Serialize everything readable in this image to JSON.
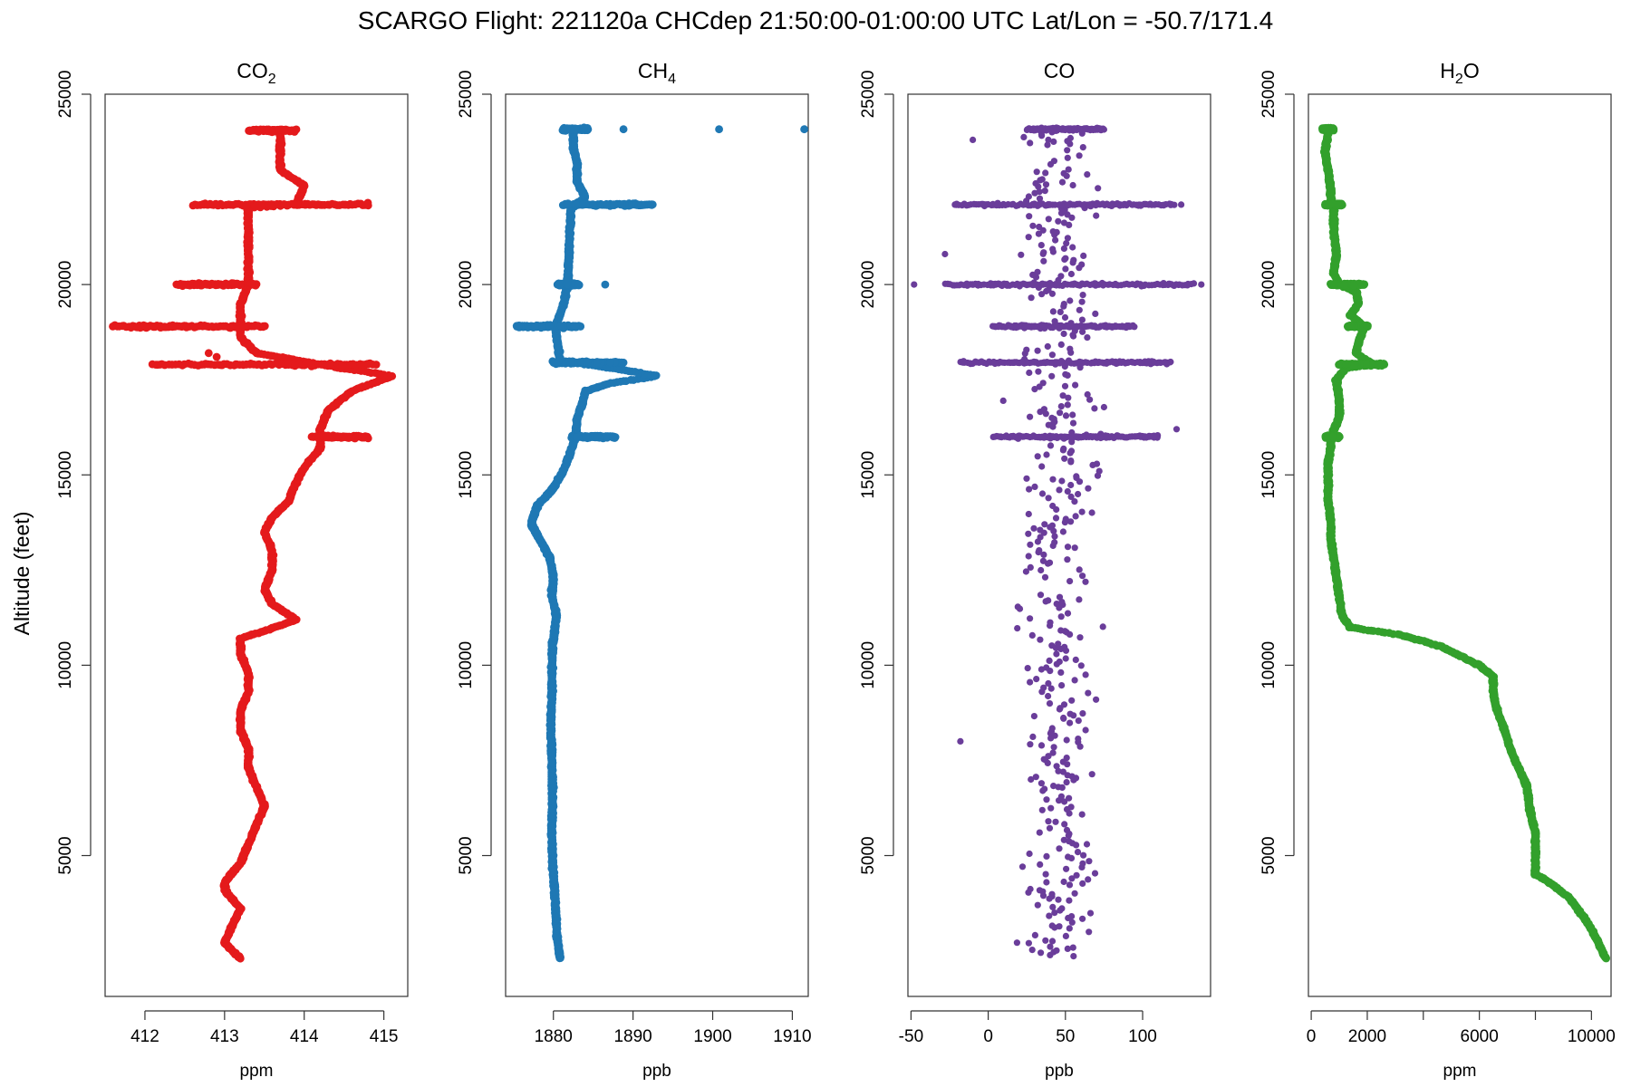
{
  "figure": {
    "title": "SCARGO Flight: 221120a  CHCdep  21:50:00-01:00:00 UTC  Lat/Lon = -50.7/171.4",
    "ylabel": "Altitude (feet)"
  },
  "chart_data": [
    {
      "type": "scatter",
      "title": "CO",
      "title_subscript": "2",
      "xlabel": "ppm",
      "ylabel": "Altitude (feet)",
      "color": "#e41a1c",
      "xlim": [
        411.5,
        415.3
      ],
      "ylim": [
        1300,
        25000
      ],
      "xticks": [
        412,
        413,
        414,
        415
      ],
      "yticks": [
        5000,
        10000,
        15000,
        20000,
        25000
      ],
      "profile": [
        [
          413.2,
          2300
        ],
        [
          413.0,
          2700
        ],
        [
          413.1,
          3200
        ],
        [
          413.2,
          3600
        ],
        [
          413.0,
          4100
        ],
        [
          413.0,
          4300
        ],
        [
          413.2,
          4800
        ],
        [
          413.3,
          5300
        ],
        [
          413.4,
          5800
        ],
        [
          413.5,
          6300
        ],
        [
          413.4,
          6800
        ],
        [
          413.3,
          7300
        ],
        [
          413.3,
          7800
        ],
        [
          413.2,
          8300
        ],
        [
          413.2,
          8800
        ],
        [
          413.3,
          9300
        ],
        [
          413.3,
          9800
        ],
        [
          413.2,
          10300
        ],
        [
          413.2,
          10700
        ],
        [
          413.5,
          10900
        ],
        [
          413.9,
          11200
        ],
        [
          413.6,
          11600
        ],
        [
          413.5,
          12000
        ],
        [
          413.6,
          12500
        ],
        [
          413.6,
          13000
        ],
        [
          413.5,
          13500
        ],
        [
          413.6,
          13900
        ],
        [
          413.8,
          14300
        ],
        [
          413.9,
          14800
        ],
        [
          414.0,
          15200
        ],
        [
          414.2,
          15700
        ],
        [
          414.2,
          16200
        ],
        [
          414.3,
          16700
        ],
        [
          414.6,
          17200
        ],
        [
          415.1,
          17600
        ],
        [
          414.2,
          17900
        ],
        [
          413.4,
          18200
        ],
        [
          413.2,
          18600
        ],
        [
          413.2,
          19000
        ],
        [
          413.2,
          19500
        ],
        [
          413.3,
          20000
        ],
        [
          413.3,
          20500
        ],
        [
          413.3,
          21000
        ],
        [
          413.3,
          21500
        ],
        [
          413.3,
          22000
        ],
        [
          413.9,
          22100
        ],
        [
          414.0,
          22600
        ],
        [
          413.7,
          23000
        ],
        [
          413.7,
          23500
        ],
        [
          413.7,
          24000
        ]
      ],
      "bands": [
        [
          24050,
          413.3,
          413.9
        ],
        [
          22100,
          412.6,
          414.8
        ],
        [
          20000,
          412.4,
          413.4
        ],
        [
          18900,
          411.6,
          413.5
        ],
        [
          17900,
          412.1,
          414.9
        ],
        [
          16000,
          414.1,
          414.8
        ]
      ],
      "outliers": [
        [
          413.5,
          17900
        ],
        [
          412.8,
          18200
        ],
        [
          412.9,
          18100
        ]
      ]
    },
    {
      "type": "scatter",
      "title": "CH",
      "title_subscript": "4",
      "xlabel": "ppb",
      "ylabel": "Altitude (feet)",
      "color": "#1f78b4",
      "xlim": [
        1874,
        1912
      ],
      "ylim": [
        1300,
        25000
      ],
      "xticks": [
        1880,
        1890,
        1900,
        1910
      ],
      "yticks": [
        5000,
        10000,
        15000,
        20000,
        25000
      ],
      "profile": [
        [
          1880.8,
          2300
        ],
        [
          1880.5,
          2800
        ],
        [
          1880.3,
          3500
        ],
        [
          1880.0,
          4500
        ],
        [
          1879.8,
          5500
        ],
        [
          1879.9,
          6500
        ],
        [
          1879.8,
          7500
        ],
        [
          1879.7,
          8500
        ],
        [
          1879.8,
          9500
        ],
        [
          1879.9,
          10500
        ],
        [
          1880.2,
          11000
        ],
        [
          1880.4,
          11300
        ],
        [
          1879.8,
          11800
        ],
        [
          1880.0,
          12300
        ],
        [
          1879.6,
          12800
        ],
        [
          1878.3,
          13300
        ],
        [
          1877.2,
          13700
        ],
        [
          1878.0,
          14200
        ],
        [
          1879.8,
          14600
        ],
        [
          1881.0,
          15000
        ],
        [
          1882.0,
          15500
        ],
        [
          1882.8,
          16000
        ],
        [
          1883.0,
          16500
        ],
        [
          1883.5,
          16800
        ],
        [
          1884.0,
          17200
        ],
        [
          1887.0,
          17400
        ],
        [
          1893.0,
          17600
        ],
        [
          1886.0,
          17850
        ],
        [
          1880.8,
          18000
        ],
        [
          1880.5,
          18500
        ],
        [
          1880.3,
          18900
        ],
        [
          1881.3,
          19500
        ],
        [
          1881.8,
          20000
        ],
        [
          1881.9,
          20500
        ],
        [
          1882.0,
          21000
        ],
        [
          1882.1,
          21500
        ],
        [
          1882.2,
          22000
        ],
        [
          1884.0,
          22300
        ],
        [
          1883.0,
          22700
        ],
        [
          1883.0,
          23200
        ],
        [
          1882.5,
          23600
        ],
        [
          1882.5,
          24000
        ]
      ],
      "bands": [
        [
          24080,
          1881.2,
          1884.4
        ],
        [
          22100,
          1881.2,
          1892.5
        ],
        [
          20000,
          1880.6,
          1883.2
        ],
        [
          18900,
          1875.4,
          1883.4
        ],
        [
          17950,
          1879.8,
          1888.8
        ],
        [
          16000,
          1882.3,
          1887.8
        ]
      ],
      "outliers": [
        [
          1888.8,
          24080
        ],
        [
          1900.8,
          24080
        ],
        [
          1911.5,
          24080
        ],
        [
          1886.5,
          20000
        ]
      ]
    },
    {
      "type": "scatter",
      "title": "CO",
      "title_subscript": "",
      "xlabel": "ppb",
      "ylabel": "Altitude (feet)",
      "color": "#6a3d9a",
      "xlim": [
        -52,
        144
      ],
      "ylim": [
        1300,
        25000
      ],
      "xticks": [
        -50,
        0,
        50,
        100
      ],
      "yticks": [
        5000,
        10000,
        15000,
        20000,
        25000
      ],
      "profile": [
        [
          45,
          2300
        ],
        [
          45,
          24000
        ]
      ],
      "noise": 22,
      "bands": [
        [
          24080,
          25,
          75
        ],
        [
          22100,
          -22,
          120
        ],
        [
          20000,
          -28,
          133
        ],
        [
          18900,
          3,
          95
        ],
        [
          17950,
          -18,
          118
        ],
        [
          16000,
          3,
          110
        ]
      ],
      "outliers": [
        [
          -48,
          20000
        ],
        [
          138,
          20000
        ],
        [
          -18,
          8000
        ],
        [
          -28,
          20800
        ],
        [
          -10,
          23800
        ],
        [
          122,
          16200
        ],
        [
          125,
          22100
        ]
      ]
    },
    {
      "type": "scatter",
      "title": "H",
      "title_subscript": "2",
      "title_suffix": "O",
      "xlabel": "ppm",
      "ylabel": "Altitude (feet)",
      "color": "#33a02c",
      "xlim": [
        -100,
        10700
      ],
      "ylim": [
        1300,
        25000
      ],
      "xticks": [
        0,
        2000,
        6000,
        10000
      ],
      "yticks": [
        5000,
        10000,
        15000,
        20000,
        25000
      ],
      "profile": [
        [
          10500,
          2300
        ],
        [
          10200,
          2800
        ],
        [
          9800,
          3300
        ],
        [
          9200,
          3900
        ],
        [
          8500,
          4300
        ],
        [
          8000,
          4500
        ],
        [
          8000,
          5000
        ],
        [
          8000,
          5600
        ],
        [
          7800,
          6200
        ],
        [
          7700,
          6800
        ],
        [
          7400,
          7300
        ],
        [
          7100,
          7800
        ],
        [
          6900,
          8300
        ],
        [
          6600,
          8900
        ],
        [
          6500,
          9300
        ],
        [
          6500,
          9700
        ],
        [
          6000,
          10000
        ],
        [
          4600,
          10500
        ],
        [
          3200,
          10800
        ],
        [
          2200,
          10900
        ],
        [
          1400,
          11000
        ],
        [
          1100,
          11300
        ],
        [
          1000,
          11800
        ],
        [
          900,
          12300
        ],
        [
          800,
          12800
        ],
        [
          700,
          13300
        ],
        [
          700,
          13800
        ],
        [
          600,
          14300
        ],
        [
          600,
          14800
        ],
        [
          600,
          15300
        ],
        [
          700,
          15700
        ],
        [
          700,
          16000
        ],
        [
          1000,
          16500
        ],
        [
          1000,
          17000
        ],
        [
          900,
          17500
        ],
        [
          1200,
          17800
        ],
        [
          2200,
          17900
        ],
        [
          1600,
          18200
        ],
        [
          1700,
          18500
        ],
        [
          1900,
          18900
        ],
        [
          1400,
          19200
        ],
        [
          1700,
          19500
        ],
        [
          1600,
          19800
        ],
        [
          1000,
          20000
        ],
        [
          800,
          20300
        ],
        [
          900,
          20800
        ],
        [
          800,
          21500
        ],
        [
          800,
          22000
        ],
        [
          700,
          22100
        ],
        [
          700,
          22500
        ],
        [
          600,
          23000
        ],
        [
          500,
          23500
        ],
        [
          600,
          24000
        ]
      ],
      "bands": [
        [
          24080,
          400,
          800
        ],
        [
          22100,
          500,
          1100
        ],
        [
          20000,
          700,
          1900
        ],
        [
          18900,
          1300,
          2000
        ],
        [
          17900,
          1000,
          2600
        ],
        [
          16000,
          500,
          1000
        ]
      ],
      "outliers": []
    }
  ]
}
